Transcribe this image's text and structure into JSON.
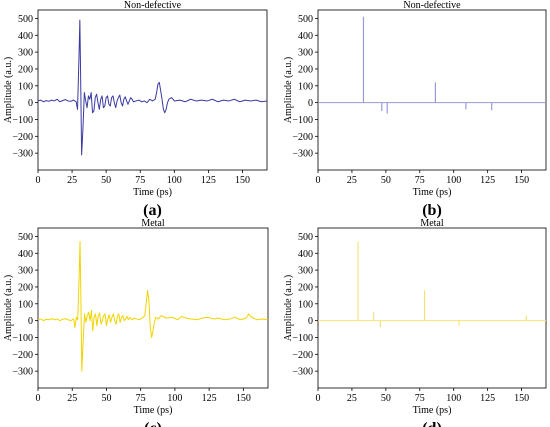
{
  "chart_data": [
    {
      "panel_label": "(a)",
      "type": "line",
      "title": "Non-defective",
      "xlabel": "Time (ps)",
      "ylabel": "Amplitude (a.u.)",
      "xlim": [
        0,
        168
      ],
      "ylim": [
        -400,
        550
      ],
      "xticks": [
        "0",
        "25",
        "50",
        "75",
        "100",
        "125",
        "150"
      ],
      "yticks": [
        "500",
        "400",
        "300",
        "200",
        "100",
        "0",
        "−100",
        "−200",
        "−300"
      ],
      "color": "#3a3aa0",
      "kind": "waveform",
      "series": [
        {
          "x": [
            0,
            2,
            4,
            6,
            8,
            10,
            12,
            14,
            16,
            18,
            20,
            22,
            24,
            26,
            28,
            29,
            30,
            30.7,
            31.2,
            32,
            33,
            34,
            35,
            36,
            37,
            38,
            39,
            40,
            41,
            42,
            43,
            44,
            45,
            46,
            47,
            48,
            49,
            50,
            51,
            52,
            53,
            54,
            55,
            56,
            57,
            58,
            59,
            60,
            61,
            62,
            63,
            64,
            65,
            66,
            67,
            68,
            69,
            70,
            72,
            74,
            76,
            78,
            80,
            82,
            84,
            86,
            87,
            88,
            89,
            90,
            91,
            92,
            93,
            94,
            95,
            96,
            98,
            100,
            104,
            108,
            112,
            116,
            120,
            124,
            128,
            132,
            136,
            140,
            144,
            148,
            152,
            156,
            160,
            164,
            168
          ],
          "y": [
            10,
            15,
            5,
            12,
            8,
            15,
            10,
            20,
            5,
            12,
            18,
            10,
            8,
            15,
            5,
            -40,
            250,
            490,
            200,
            -310,
            -150,
            60,
            10,
            -30,
            40,
            20,
            60,
            -60,
            -50,
            30,
            50,
            0,
            -40,
            20,
            40,
            -30,
            -20,
            30,
            40,
            -10,
            -20,
            30,
            40,
            0,
            -30,
            10,
            30,
            45,
            0,
            -20,
            20,
            35,
            10,
            -10,
            10,
            30,
            20,
            5,
            10,
            15,
            5,
            10,
            0,
            20,
            10,
            20,
            60,
            110,
            120,
            70,
            20,
            -40,
            -60,
            -40,
            0,
            20,
            30,
            10,
            15,
            5,
            20,
            10,
            15,
            10,
            20,
            5,
            15,
            10,
            20,
            5,
            15,
            10,
            15,
            5,
            10
          ]
        }
      ]
    },
    {
      "panel_label": "(b)",
      "type": "line",
      "title": "Non-defective",
      "xlabel": "Time (ps)",
      "ylabel": "Amplitude (a.u.)",
      "xlim": [
        0,
        168
      ],
      "ylim": [
        -400,
        550
      ],
      "xticks": [
        "0",
        "25",
        "50",
        "75",
        "100",
        "125",
        "150"
      ],
      "yticks": [
        "500",
        "400",
        "300",
        "200",
        "100",
        "0",
        "−100",
        "−200",
        "−300"
      ],
      "color": "#9a9ad8",
      "kind": "impulses",
      "series": [
        {
          "x": [
            33.5,
            47,
            51,
            86.5,
            109,
            128
          ],
          "y": [
            510,
            -50,
            -65,
            120,
            -40,
            -45
          ]
        }
      ]
    },
    {
      "panel_label": "(c)",
      "type": "line",
      "title": "Metal",
      "xlabel": "Time (ps)",
      "ylabel": "Amplitude (a.u.)",
      "xlim": [
        0,
        168
      ],
      "ylim": [
        -400,
        550
      ],
      "xticks": [
        "0",
        "25",
        "50",
        "75",
        "100",
        "125",
        "150"
      ],
      "yticks": [
        "500",
        "400",
        "300",
        "200",
        "100",
        "0",
        "−100",
        "−200",
        "−300"
      ],
      "color": "#f2d400",
      "kind": "waveform",
      "series": [
        {
          "x": [
            0,
            2,
            4,
            6,
            8,
            10,
            12,
            14,
            16,
            18,
            20,
            22,
            24,
            26,
            27,
            28,
            29,
            30,
            30.7,
            31.3,
            32,
            33,
            34,
            35,
            36,
            37,
            38,
            39,
            40,
            41,
            42,
            43,
            44,
            45,
            46,
            47,
            48,
            49,
            50,
            51,
            52,
            53,
            54,
            55,
            56,
            57,
            58,
            59,
            60,
            61,
            62,
            63,
            64,
            65,
            66,
            67,
            68,
            69,
            70,
            72,
            74,
            76,
            78,
            79,
            80,
            81,
            82,
            83,
            84,
            85,
            86,
            88,
            90,
            94,
            98,
            102,
            105,
            108,
            112,
            116,
            120,
            124,
            128,
            132,
            136,
            140,
            144,
            148,
            152,
            154,
            156,
            160,
            164,
            168
          ],
          "y": [
            5,
            10,
            0,
            8,
            5,
            12,
            5,
            10,
            0,
            8,
            12,
            5,
            0,
            10,
            -40,
            20,
            5,
            250,
            470,
            150,
            -300,
            -120,
            40,
            -10,
            30,
            50,
            0,
            60,
            -60,
            20,
            40,
            -30,
            30,
            45,
            -20,
            0,
            30,
            40,
            -30,
            10,
            35,
            -10,
            20,
            40,
            0,
            -20,
            25,
            40,
            -10,
            20,
            30,
            0,
            10,
            25,
            5,
            20,
            10,
            5,
            15,
            10,
            5,
            15,
            30,
            100,
            180,
            120,
            -40,
            -100,
            -60,
            -10,
            20,
            10,
            30,
            15,
            20,
            5,
            25,
            15,
            10,
            5,
            15,
            20,
            10,
            15,
            5,
            10,
            20,
            5,
            15,
            40,
            20,
            5,
            10,
            5
          ]
        }
      ]
    },
    {
      "panel_label": "(d)",
      "type": "line",
      "title": "Metal",
      "xlabel": "Time (ps)",
      "ylabel": "Amplitude (a.u.)",
      "xlim": [
        0,
        168
      ],
      "ylim": [
        -400,
        550
      ],
      "xticks": [
        "0",
        "25",
        "50",
        "75",
        "100",
        "125",
        "150"
      ],
      "yticks": [
        "500",
        "400",
        "300",
        "200",
        "100",
        "0",
        "−100",
        "−200",
        "−300"
      ],
      "color": "#f6e27a",
      "kind": "impulses",
      "series": [
        {
          "x": [
            29.5,
            41,
            46,
            78.5,
            104,
            153.5
          ],
          "y": [
            470,
            50,
            -40,
            180,
            -30,
            30
          ]
        }
      ]
    }
  ]
}
